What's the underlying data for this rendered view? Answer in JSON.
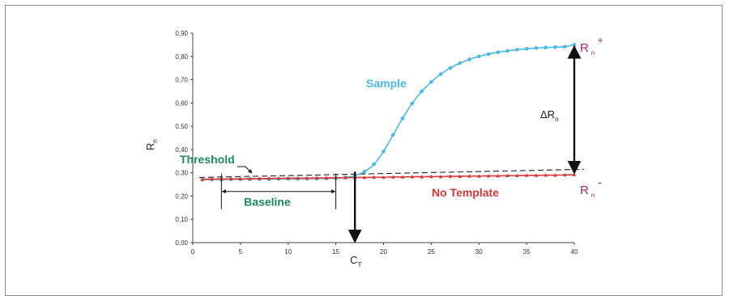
{
  "chart_data": {
    "type": "line",
    "title": "",
    "xlabel": "",
    "ylabel": "R",
    "ylabel_sub": "n",
    "xlim": [
      0,
      40
    ],
    "ylim": [
      0.0,
      0.9
    ],
    "x_ticks": [
      0,
      5,
      10,
      15,
      20,
      25,
      30,
      35,
      40
    ],
    "y_ticks": [
      "0,00",
      "0,10",
      "0,20",
      "0,30",
      "0,40",
      "0,50",
      "0,60",
      "0,70",
      "0,80",
      "0,90"
    ],
    "grid": false,
    "series": [
      {
        "name": "Sample",
        "color": "#4ab9e6",
        "marker": "circle",
        "x": [
          1,
          2,
          3,
          4,
          5,
          6,
          7,
          8,
          9,
          10,
          11,
          12,
          13,
          14,
          15,
          16,
          17,
          18,
          19,
          20,
          21,
          22,
          23,
          24,
          25,
          26,
          27,
          28,
          29,
          30,
          31,
          32,
          33,
          34,
          35,
          36,
          37,
          38,
          39,
          40
        ],
        "y": [
          0.27,
          0.271,
          0.271,
          0.272,
          0.272,
          0.273,
          0.273,
          0.273,
          0.274,
          0.274,
          0.274,
          0.275,
          0.275,
          0.276,
          0.277,
          0.28,
          0.288,
          0.305,
          0.337,
          0.392,
          0.463,
          0.534,
          0.598,
          0.65,
          0.69,
          0.724,
          0.75,
          0.771,
          0.787,
          0.8,
          0.81,
          0.818,
          0.824,
          0.829,
          0.833,
          0.836,
          0.838,
          0.84,
          0.842,
          0.85
        ]
      },
      {
        "name": "No Template",
        "color": "#d63a3a",
        "marker": "triangle",
        "x": [
          1,
          2,
          3,
          4,
          5,
          6,
          7,
          8,
          9,
          10,
          11,
          12,
          13,
          14,
          15,
          16,
          17,
          18,
          19,
          20,
          21,
          22,
          23,
          24,
          25,
          26,
          27,
          28,
          29,
          30,
          31,
          32,
          33,
          34,
          35,
          36,
          37,
          38,
          39,
          40
        ],
        "y": [
          0.272,
          0.273,
          0.273,
          0.274,
          0.274,
          0.275,
          0.275,
          0.276,
          0.276,
          0.277,
          0.277,
          0.277,
          0.278,
          0.278,
          0.279,
          0.279,
          0.28,
          0.28,
          0.281,
          0.281,
          0.282,
          0.282,
          0.283,
          0.283,
          0.284,
          0.284,
          0.285,
          0.285,
          0.286,
          0.286,
          0.287,
          0.287,
          0.288,
          0.288,
          0.289,
          0.289,
          0.29,
          0.29,
          0.291,
          0.292
        ]
      }
    ],
    "threshold": {
      "label": "Threshold",
      "x": [
        0,
        41
      ],
      "y": [
        0.28,
        0.315
      ]
    },
    "baseline": {
      "label": "Baseline",
      "x_start": 3,
      "x_end": 15,
      "y": 0.22
    },
    "ct": {
      "label": "C",
      "label_sub": "T",
      "x": 17
    },
    "annotations": {
      "sample_label": "Sample",
      "no_template_label": "No Template",
      "delta_rn": {
        "prefix": "ΔR",
        "sub": "n"
      },
      "rn_plus": {
        "main": "R",
        "sub": "n",
        "sup": "+"
      },
      "rn_minus": {
        "main": "R",
        "sub": "n",
        "sup": "-"
      }
    },
    "colors": {
      "sample": "#4ab9e6",
      "no_template": "#d63a3a",
      "threshold_text": "#1f8a60",
      "baseline_text": "#1f8a60",
      "rn_labels": "#a0286c",
      "arrows": "#111111"
    }
  }
}
